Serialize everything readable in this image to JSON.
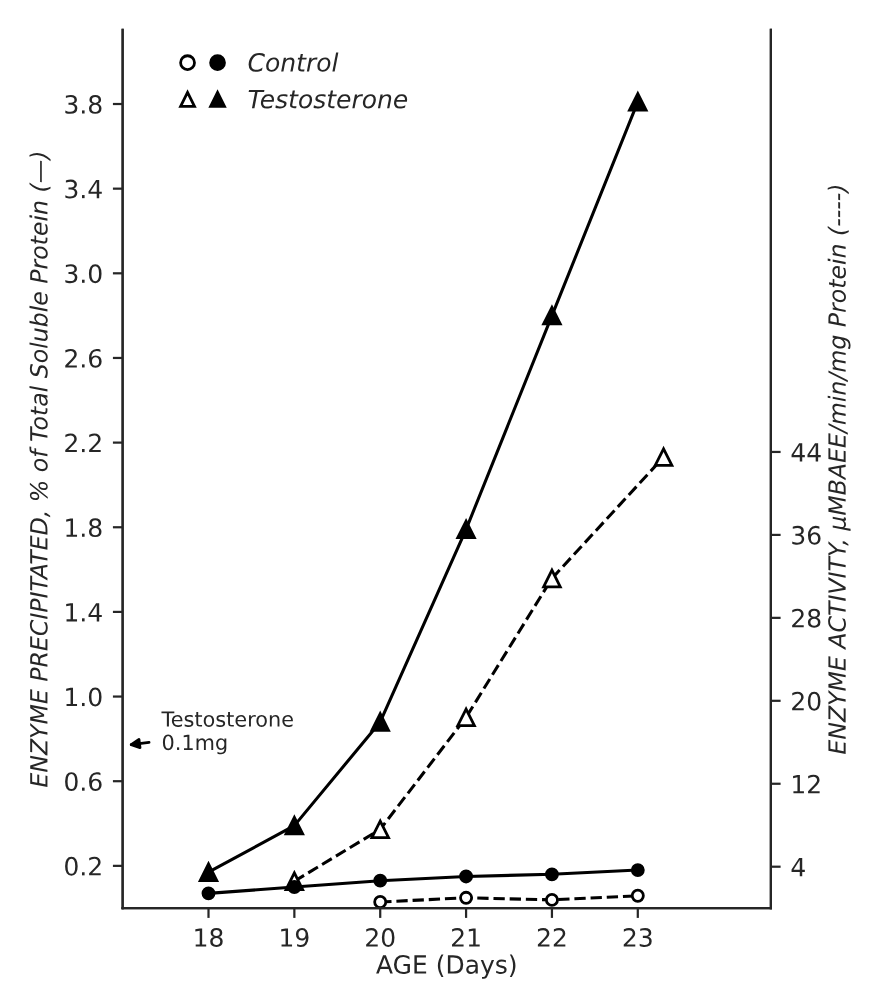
{
  "chart_data": {
    "type": "line",
    "xlabel": "AGE (Days)",
    "ylabel": "ENZYME PRECIPITATED, % of Total Soluble Protein (—)",
    "y2label": "ENZYME ACTIVITY, μMBAEE/min/mg Protein (----)",
    "xlim": [
      17,
      24.55
    ],
    "xticks": [
      18,
      19,
      20,
      21,
      22,
      23
    ],
    "ylim": [
      0,
      4.15
    ],
    "yticks": [
      0.2,
      0.6,
      {
        "value": 1,
        "label": "1.0"
      },
      1.4,
      1.8,
      2.2,
      2.6,
      {
        "value": 3,
        "label": "3.0"
      },
      3.4,
      3.8
    ],
    "y2lim": [
      0,
      84.7
    ],
    "y2ticks": [
      4,
      12,
      20,
      28,
      36,
      44
    ],
    "legend": "top left",
    "grid": false,
    "series": [
      {
        "name": "Control",
        "color": "#000000",
        "marker": "circle",
        "line_style": "solid",
        "x": [
          18,
          19,
          20,
          21,
          22,
          23
        ],
        "values": [
          0.07,
          0.1,
          0.13,
          0.15,
          0.16,
          0.18
        ]
      },
      {
        "color": "#000000",
        "marker": "circle",
        "line_style": "dashed",
        "axis": "y2",
        "x": [
          20,
          21,
          22,
          23
        ],
        "values": [
          0.6,
          1.0,
          0.8,
          1.2
        ]
      },
      {
        "name": "Testosterone",
        "color": "#000000",
        "marker": "triangle",
        "line_style": "solid",
        "x": [
          18,
          19,
          20,
          21,
          22,
          23
        ],
        "values": [
          0.17,
          0.39,
          0.88,
          1.79,
          2.8,
          3.81
        ]
      },
      {
        "color": "#000000",
        "marker": "triangle",
        "line_style": "dashed",
        "axis": "y2",
        "x": [
          19,
          20,
          21,
          22,
          23.3
        ],
        "values": [
          2.6,
          7.6,
          18.4,
          31.8,
          43.5
        ]
      }
    ],
    "annotations": [
      "Testosterone\n0.1mg"
    ]
  }
}
